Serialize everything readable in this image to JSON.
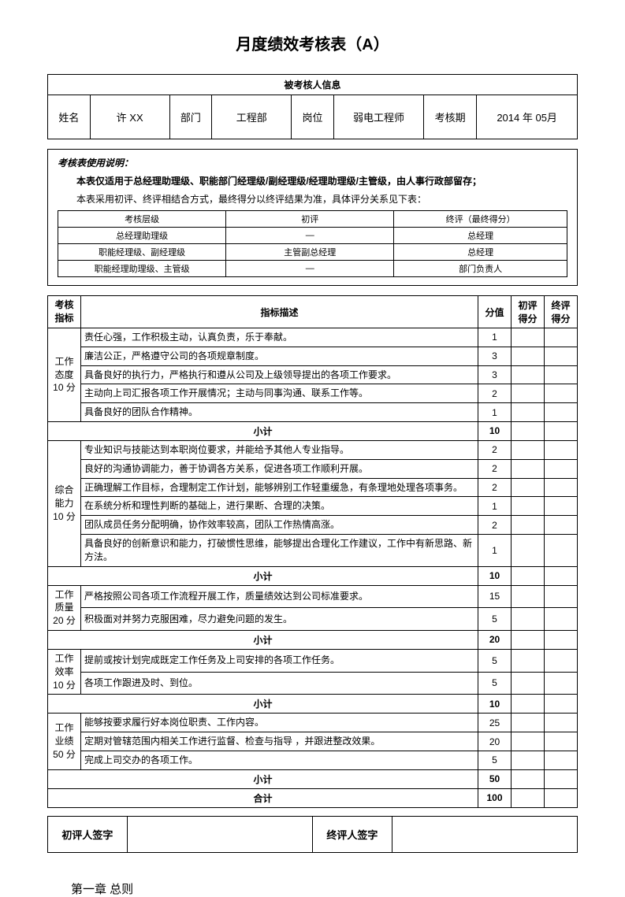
{
  "title": "月度绩效考核表（A）",
  "info": {
    "header": "被考核人信息",
    "labels": {
      "name": "姓名",
      "dept": "部门",
      "position": "岗位",
      "period": "考核期"
    },
    "values": {
      "name": "许 XX",
      "dept": "工程部",
      "position": "弱电工程师",
      "period": "2014 年  05月"
    }
  },
  "instruction": {
    "title": "考核表使用说明：",
    "line1": "本表仅适用于总经理助理级、职能部门经理级/副经理级/经理助理级/主管级，由人事行政部留存；",
    "line2": "本表采用初评、终评相结合方式，最终得分以终评结果为准，具体评分关系见下表：",
    "table": {
      "headers": [
        "考核层级",
        "初评",
        "终评（最终得分）"
      ],
      "rows": [
        [
          "总经理助理级",
          "—",
          "总经理"
        ],
        [
          "职能经理级、副经理级",
          "主管副总经理",
          "总经理"
        ],
        [
          "职能经理助理级、主管级",
          "—",
          "部门负责人"
        ]
      ]
    }
  },
  "main": {
    "headers": {
      "indicator": "考核指标",
      "description": "指标描述",
      "score": "分值",
      "initial": "初评得分",
      "final": "终评得分"
    },
    "subtotal_label": "小计",
    "total_label": "合计",
    "total_value": "100",
    "categories": [
      {
        "name": "工作态度10 分",
        "items": [
          {
            "desc": "责任心强，工作积极主动，认真负责，乐于奉献。",
            "score": "1"
          },
          {
            "desc": "廉洁公正，严格遵守公司的各项规章制度。",
            "score": "3"
          },
          {
            "desc": "具备良好的执行力，严格执行和遵从公司及上级领导提出的各项工作要求。",
            "score": "3"
          },
          {
            "desc": "主动向上司汇报各项工作开展情况；主动与同事沟通、联系工作等。",
            "score": "2"
          },
          {
            "desc": "具备良好的团队合作精神。",
            "score": "1"
          }
        ],
        "subtotal": "10"
      },
      {
        "name": "综合能力10 分",
        "items": [
          {
            "desc": "专业知识与技能达到本职岗位要求，并能给予其他人专业指导。",
            "score": "2"
          },
          {
            "desc": "良好的沟通协调能力，善于协调各方关系，促进各项工作顺利开展。",
            "score": "2"
          },
          {
            "desc": "正确理解工作目标，合理制定工作计划，能够辨别工作轻重缓急，有条理地处理各项事务。",
            "score": "2"
          },
          {
            "desc": "在系统分析和理性判断的基础上，进行果断、合理的决策。",
            "score": "1"
          },
          {
            "desc": "团队成员任务分配明确，协作效率较高，团队工作热情高涨。",
            "score": "2"
          },
          {
            "desc": "具备良好的创新意识和能力，打破惯性思维，能够提出合理化工作建议，工作中有新思路、新方法。",
            "score": "1"
          }
        ],
        "subtotal": "10"
      },
      {
        "name": "工作质量20 分",
        "items": [
          {
            "desc": "严格按照公司各项工作流程开展工作，质量绩效达到公司标准要求。",
            "score": "15"
          },
          {
            "desc": "积极面对并努力克服困难，尽力避免问题的发生。",
            "score": "5"
          }
        ],
        "subtotal": "20"
      },
      {
        "name": "工作效率10 分",
        "items": [
          {
            "desc": "提前或按计划完成既定工作任务及上司安排的各项工作任务。",
            "score": "5"
          },
          {
            "desc": "各项工作跟进及时、到位。",
            "score": "5"
          }
        ],
        "subtotal": "10"
      },
      {
        "name": "工作业绩50 分",
        "items": [
          {
            "desc": "能够按要求履行好本岗位职责、工作内容。",
            "score": "25"
          },
          {
            "desc": "定期对管辖范围内相关工作进行监督、检查与指导 ，并跟进整改效果。",
            "score": "20"
          },
          {
            "desc": "完成上司交办的各项工作。",
            "score": "5"
          }
        ],
        "subtotal": "50"
      }
    ]
  },
  "signatures": {
    "initial": "初评人签字",
    "final": "终评人签字"
  },
  "chapter": "第一章  总则"
}
